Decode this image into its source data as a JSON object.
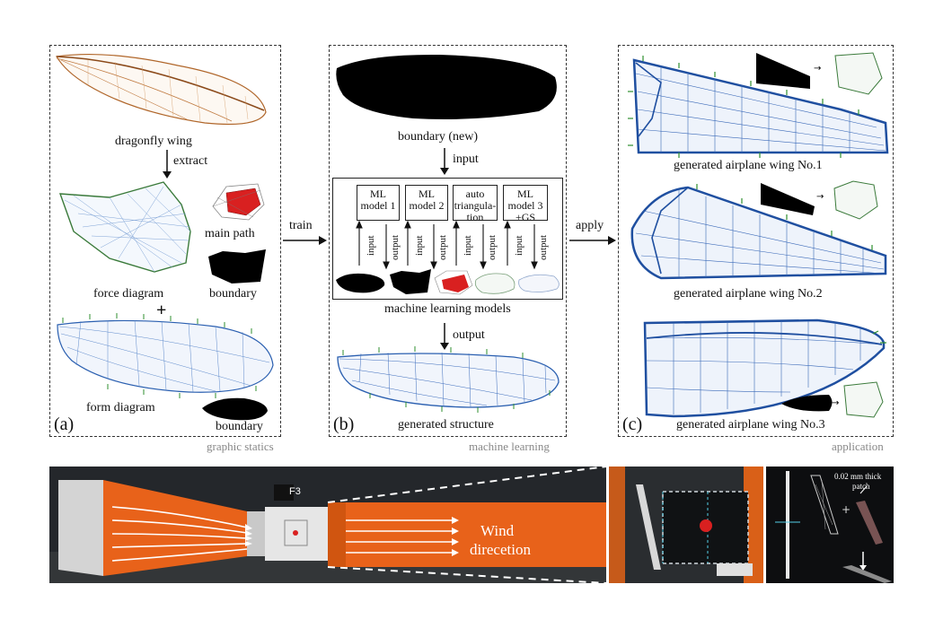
{
  "panel_a": {
    "tag": "(a)",
    "caption": "graphic statics",
    "dragonfly_wing": "dragonfly wing",
    "extract": "extract",
    "main_path": "main path",
    "force_diagram": "force diagram",
    "boundary_1": "boundary",
    "plus": "+",
    "form_diagram": "form diagram",
    "boundary_2": "boundary"
  },
  "train": "train",
  "apply": "apply",
  "panel_b": {
    "tag": "(b)",
    "caption": "machine learning",
    "boundary_new": "boundary (new)",
    "input": "input",
    "models": [
      {
        "line1": "ML",
        "line2": "model 1",
        "line3": ""
      },
      {
        "line1": "ML",
        "line2": "model 2",
        "line3": ""
      },
      {
        "line1": "auto",
        "line2": "triangula-",
        "line3": "tion"
      },
      {
        "line1": "ML",
        "line2": "model 3",
        "line3": "+GS"
      }
    ],
    "io_input": "input",
    "io_output": "output",
    "ml_models": "machine learning models",
    "output": "output",
    "generated_structure": "generated structure"
  },
  "panel_c": {
    "tag": "(c)",
    "caption": "application",
    "wing1": "generated airplane wing No.1",
    "wing2": "generated airplane wing No.2",
    "wing3": "generated airplane wing No.3"
  },
  "photo": {
    "wind_line1": "Wind",
    "wind_line2": "direcetion",
    "f3": "F3",
    "patch_line1": "0.02 mm thick",
    "patch_line2": "patch"
  },
  "colors": {
    "wing_blue": "#2a5fb0",
    "pin_green": "#2f8f2f",
    "orange": "#e8621a",
    "red": "#d92020"
  }
}
